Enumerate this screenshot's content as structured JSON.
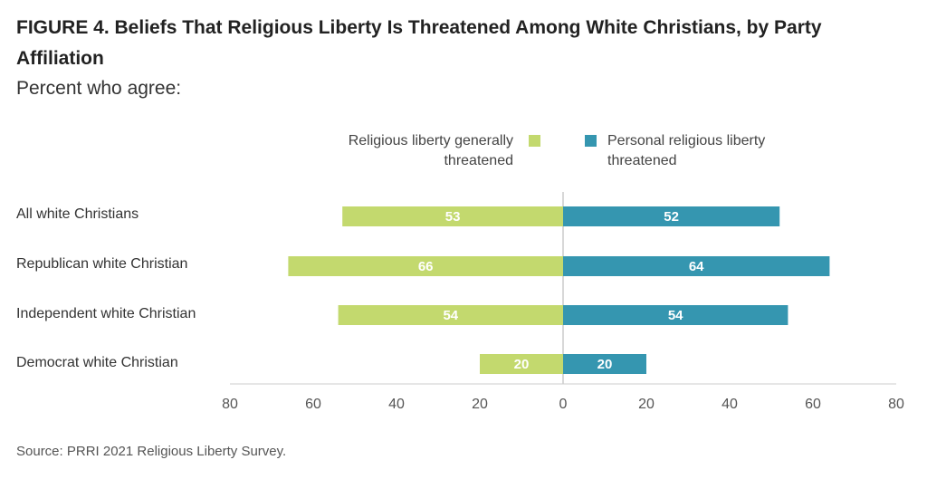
{
  "title": "FIGURE 4.  Beliefs That Religious Liberty Is Threatened Among White Christians, by Party Affiliation",
  "subtitle": "Percent who agree:",
  "source": "Source: PRRI 2021 Religious Liberty Survey.",
  "legend": {
    "left": "Religious liberty generally threatened",
    "right": "Personal religious liberty threatened"
  },
  "colors": {
    "left_series": "#c3d96e",
    "right_series": "#3596b0",
    "axis": "#cccccc"
  },
  "chart_data": {
    "type": "bar",
    "orientation": "diverging-horizontal",
    "categories": [
      "All white Christians",
      "Republican white Christian",
      "Independent white Christian",
      "Democrat white Christian"
    ],
    "series": [
      {
        "name": "Religious liberty generally threatened",
        "values": [
          53,
          66,
          54,
          20
        ],
        "side": "left"
      },
      {
        "name": "Personal religious liberty threatened",
        "values": [
          52,
          64,
          54,
          20
        ],
        "side": "right"
      }
    ],
    "xlim": [
      -80,
      80
    ],
    "ticks": [
      -80,
      -60,
      -40,
      -20,
      0,
      20,
      40,
      60,
      80
    ],
    "tick_labels": [
      "80",
      "60",
      "40",
      "20",
      "0",
      "20",
      "40",
      "60",
      "80"
    ],
    "legend_position": "top-center",
    "grid": false
  }
}
